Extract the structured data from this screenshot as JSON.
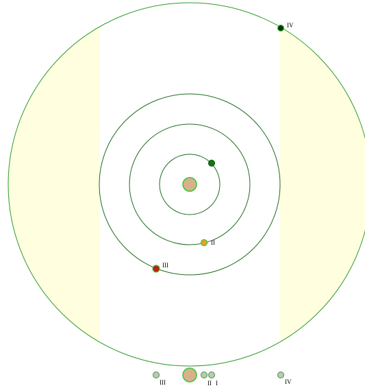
{
  "orbit_view": {
    "labels": [
      "IV",
      "II",
      "III"
    ]
  },
  "side_view": {
    "labels": [
      "III",
      "II",
      "I",
      "IV"
    ]
  }
}
